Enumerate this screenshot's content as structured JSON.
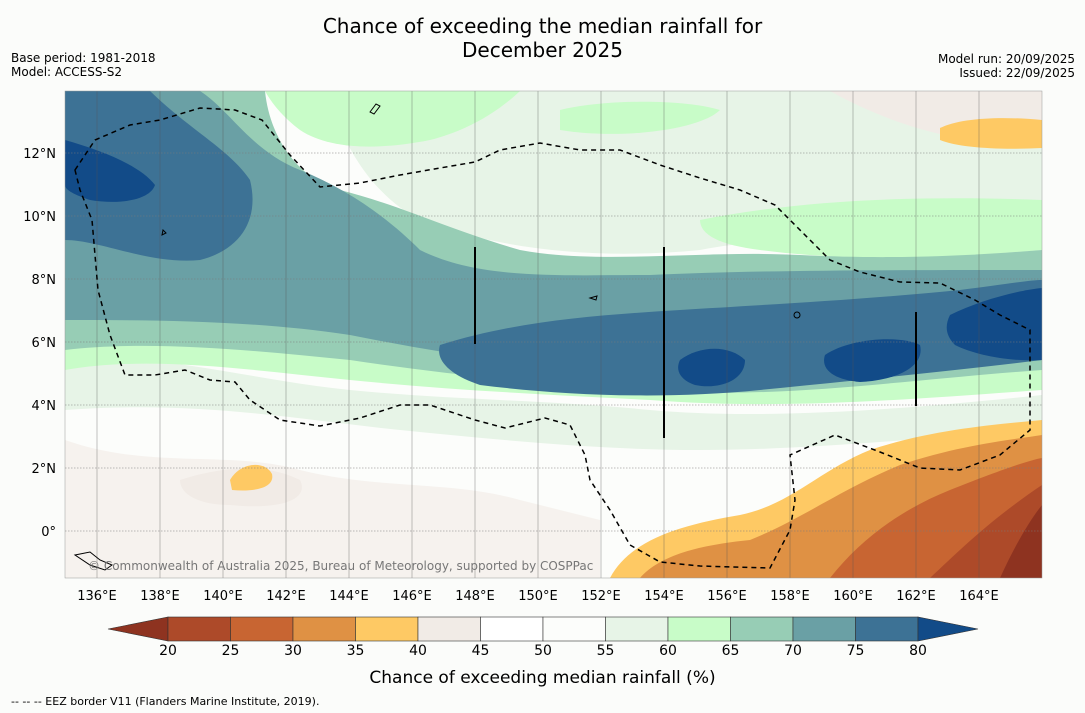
{
  "title": {
    "line1": "Chance of exceeding the median rainfall for",
    "line2": "December 2025"
  },
  "meta": {
    "base_period": "Base period: 1981-2018",
    "model": "Model: ACCESS-S2",
    "model_run": "Model run: 20/09/2025",
    "issued": "Issued: 22/09/2025"
  },
  "map": {
    "lon_labels": [
      "136°E",
      "138°E",
      "140°E",
      "142°E",
      "144°E",
      "146°E",
      "148°E",
      "150°E",
      "152°E",
      "154°E",
      "156°E",
      "158°E",
      "160°E",
      "162°E",
      "164°E"
    ],
    "lat_labels": [
      "12°N",
      "10°N",
      "8°N",
      "6°N",
      "4°N",
      "2°N",
      "0°"
    ],
    "copyright": "© Commonwealth of Australia 2025, Bureau of Meteorology, supported by COSPPac"
  },
  "colorbar": {
    "ticks": [
      "20",
      "25",
      "30",
      "35",
      "40",
      "45",
      "50",
      "55",
      "60",
      "65",
      "70",
      "75",
      "80"
    ],
    "colors": [
      "#8e3320",
      "#ad4a29",
      "#c86532",
      "#df9144",
      "#fec964",
      "#f1ebe6",
      "#ffffff",
      "#fcfdfb",
      "#e7f4e7",
      "#c8fcc8",
      "#97cdb5",
      "#6aa0a5",
      "#3d7295",
      "#124b88"
    ],
    "title": "Chance of exceeding median rainfall (%)"
  },
  "footer": "--  --  -- EEZ border V11 (Flanders Marine Institute, 2019)."
}
